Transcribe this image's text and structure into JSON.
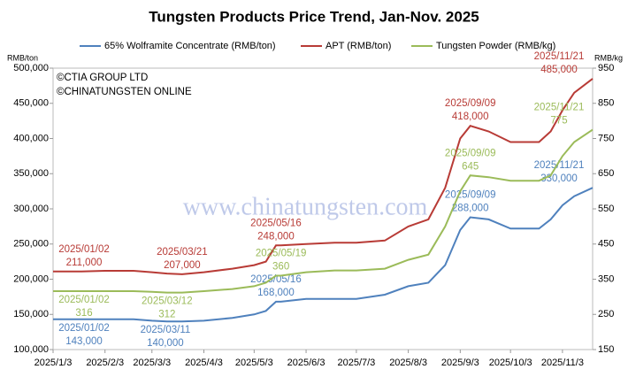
{
  "chart_data": {
    "type": "line",
    "title": "Tungsten Products Price Trend, Jan-Nov. 2025",
    "y_label": "RMB/ton",
    "y2_label": "RMB/kg",
    "copyright": [
      "©CTIA GROUP LTD",
      "©CHINATUNGSTEN ONLINE"
    ],
    "watermark": "www.chinatungsten.com",
    "x": [
      "2025/1/3",
      "2025/1/20",
      "2025/2/3",
      "2025/2/20",
      "2025/3/3",
      "2025/3/12",
      "2025/3/21",
      "2025/4/3",
      "2025/4/20",
      "2025/5/3",
      "2025/5/10",
      "2025/5/16",
      "2025/5/19",
      "2025/6/3",
      "2025/6/20",
      "2025/7/3",
      "2025/7/20",
      "2025/8/3",
      "2025/8/15",
      "2025/8/25",
      "2025/9/3",
      "2025/9/9",
      "2025/9/20",
      "2025/10/3",
      "2025/10/20",
      "2025/10/27",
      "2025/11/3",
      "2025/11/10",
      "2025/11/21"
    ],
    "xlim": [
      "2025/1/3",
      "2025/11/21"
    ],
    "xticks": [
      "2025/1/3",
      "2025/2/3",
      "2025/3/3",
      "2025/4/3",
      "2025/5/3",
      "2025/6/3",
      "2025/7/3",
      "2025/8/3",
      "2025/9/3",
      "2025/10/3",
      "2025/11/3"
    ],
    "ylim": [
      100000,
      500000
    ],
    "yticks": [
      {
        "value": 100000,
        "label": "100,000"
      },
      {
        "value": 150000,
        "label": "150,000"
      },
      {
        "value": 200000,
        "label": "200,000"
      },
      {
        "value": 250000,
        "label": "250,000"
      },
      {
        "value": 300000,
        "label": "300,000"
      },
      {
        "value": 350000,
        "label": "350,000"
      },
      {
        "value": 400000,
        "label": "400,000"
      },
      {
        "value": 450000,
        "label": "450,000"
      },
      {
        "value": 500000,
        "label": "500,000"
      }
    ],
    "y2lim": [
      150,
      950
    ],
    "y2ticks": [
      150,
      250,
      350,
      450,
      550,
      650,
      750,
      850,
      950
    ],
    "series": [
      {
        "name": "65% Wolframite Concentrate (RMB/ton)",
        "color": "#4f81bd",
        "axis": "y",
        "values": [
          143000,
          143000,
          143000,
          143000,
          141000,
          140000,
          140000,
          141000,
          145000,
          150000,
          155000,
          168000,
          168000,
          172000,
          172000,
          172000,
          178000,
          190000,
          195000,
          220000,
          270000,
          288000,
          285000,
          272000,
          272000,
          285000,
          305000,
          318000,
          330000
        ],
        "annotations": [
          {
            "date": "2025/01/02",
            "value": 143000,
            "label": "143,000"
          },
          {
            "date": "2025/03/11",
            "value": 140000,
            "label": "140,000"
          },
          {
            "date": "2025/05/16",
            "value": 168000,
            "label": "168,000"
          },
          {
            "date": "2025/09/09",
            "value": 288000,
            "label": "288,000"
          },
          {
            "date": "2025/11/21",
            "value": 330000,
            "label": "330,000"
          }
        ]
      },
      {
        "name": "APT (RMB/ton)",
        "color": "#b83b36",
        "axis": "y",
        "values": [
          211000,
          211000,
          212000,
          212000,
          210000,
          208000,
          207000,
          210000,
          215000,
          220000,
          225000,
          248000,
          248000,
          250000,
          252000,
          252000,
          255000,
          275000,
          285000,
          330000,
          400000,
          418000,
          410000,
          395000,
          395000,
          410000,
          440000,
          465000,
          485000
        ],
        "annotations": [
          {
            "date": "2025/01/02",
            "value": 211000,
            "label": "211,000"
          },
          {
            "date": "2025/03/21",
            "value": 207000,
            "label": "207,000"
          },
          {
            "date": "2025/05/16",
            "value": 248000,
            "label": "248,000"
          },
          {
            "date": "2025/09/09",
            "value": 418000,
            "label": "418,000"
          },
          {
            "date": "2025/11/21",
            "value": 485000,
            "label": "485,000"
          }
        ]
      },
      {
        "name": "Tungsten Powder (RMB/kg)",
        "color": "#9bbb59",
        "axis": "y2",
        "values": [
          316,
          316,
          316,
          316,
          314,
          312,
          312,
          316,
          322,
          330,
          340,
          360,
          360,
          370,
          375,
          375,
          380,
          405,
          420,
          500,
          600,
          645,
          640,
          630,
          630,
          645,
          700,
          740,
          775
        ],
        "annotations": [
          {
            "date": "2025/01/02",
            "value": 316,
            "label": "316"
          },
          {
            "date": "2025/03/12",
            "value": 312,
            "label": "312"
          },
          {
            "date": "2025/05/19",
            "value": 360,
            "label": "360"
          },
          {
            "date": "2025/09/09",
            "value": 645,
            "label": "645"
          },
          {
            "date": "2025/11/21",
            "value": 775,
            "label": "775"
          }
        ]
      }
    ]
  }
}
